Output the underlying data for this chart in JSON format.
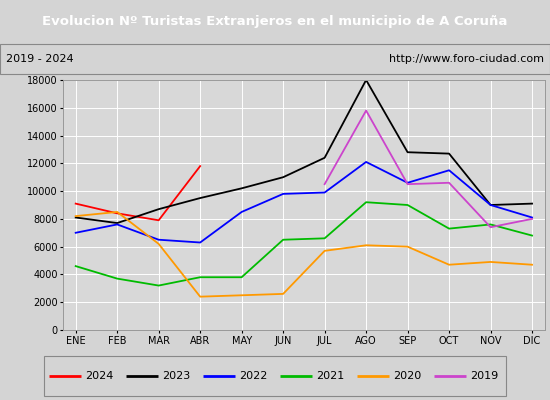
{
  "title": "Evolucion Nº Turistas Extranjeros en el municipio de A Coruña",
  "subtitle_left": "2019 - 2024",
  "subtitle_right": "http://www.foro-ciudad.com",
  "title_bg_color": "#4e7cc9",
  "title_text_color": "#ffffff",
  "months": [
    "ENE",
    "FEB",
    "MAR",
    "ABR",
    "MAY",
    "JUN",
    "JUL",
    "AGO",
    "SEP",
    "OCT",
    "NOV",
    "DIC"
  ],
  "ylim": [
    0,
    18000
  ],
  "yticks": [
    0,
    2000,
    4000,
    6000,
    8000,
    10000,
    12000,
    14000,
    16000,
    18000
  ],
  "series": {
    "2024": {
      "color": "#ff0000",
      "data": [
        9100,
        8400,
        7900,
        11800,
        null,
        null,
        null,
        null,
        null,
        null,
        null,
        null
      ]
    },
    "2023": {
      "color": "#000000",
      "data": [
        8100,
        7700,
        8700,
        9500,
        10200,
        11000,
        12400,
        18000,
        12800,
        12700,
        9000,
        9100
      ]
    },
    "2022": {
      "color": "#0000ff",
      "data": [
        7000,
        7600,
        6500,
        6300,
        8500,
        9800,
        9900,
        12100,
        10600,
        11500,
        9000,
        8100
      ]
    },
    "2021": {
      "color": "#00bb00",
      "data": [
        4600,
        3700,
        3200,
        3800,
        3800,
        6500,
        6600,
        9200,
        9000,
        7300,
        7600,
        6800
      ]
    },
    "2020": {
      "color": "#ff9900",
      "data": [
        8200,
        8500,
        6200,
        2400,
        2500,
        2600,
        5700,
        6100,
        6000,
        4700,
        4900,
        4700
      ]
    },
    "2019": {
      "color": "#cc44cc",
      "data": [
        null,
        null,
        null,
        null,
        null,
        null,
        10500,
        15800,
        10500,
        10600,
        7400,
        8000
      ]
    }
  },
  "plot_bg_color": "#d8d8d8",
  "fig_bg_color": "#d4d4d4",
  "grid_color": "#ffffff",
  "legend_order": [
    "2024",
    "2023",
    "2022",
    "2021",
    "2020",
    "2019"
  ]
}
